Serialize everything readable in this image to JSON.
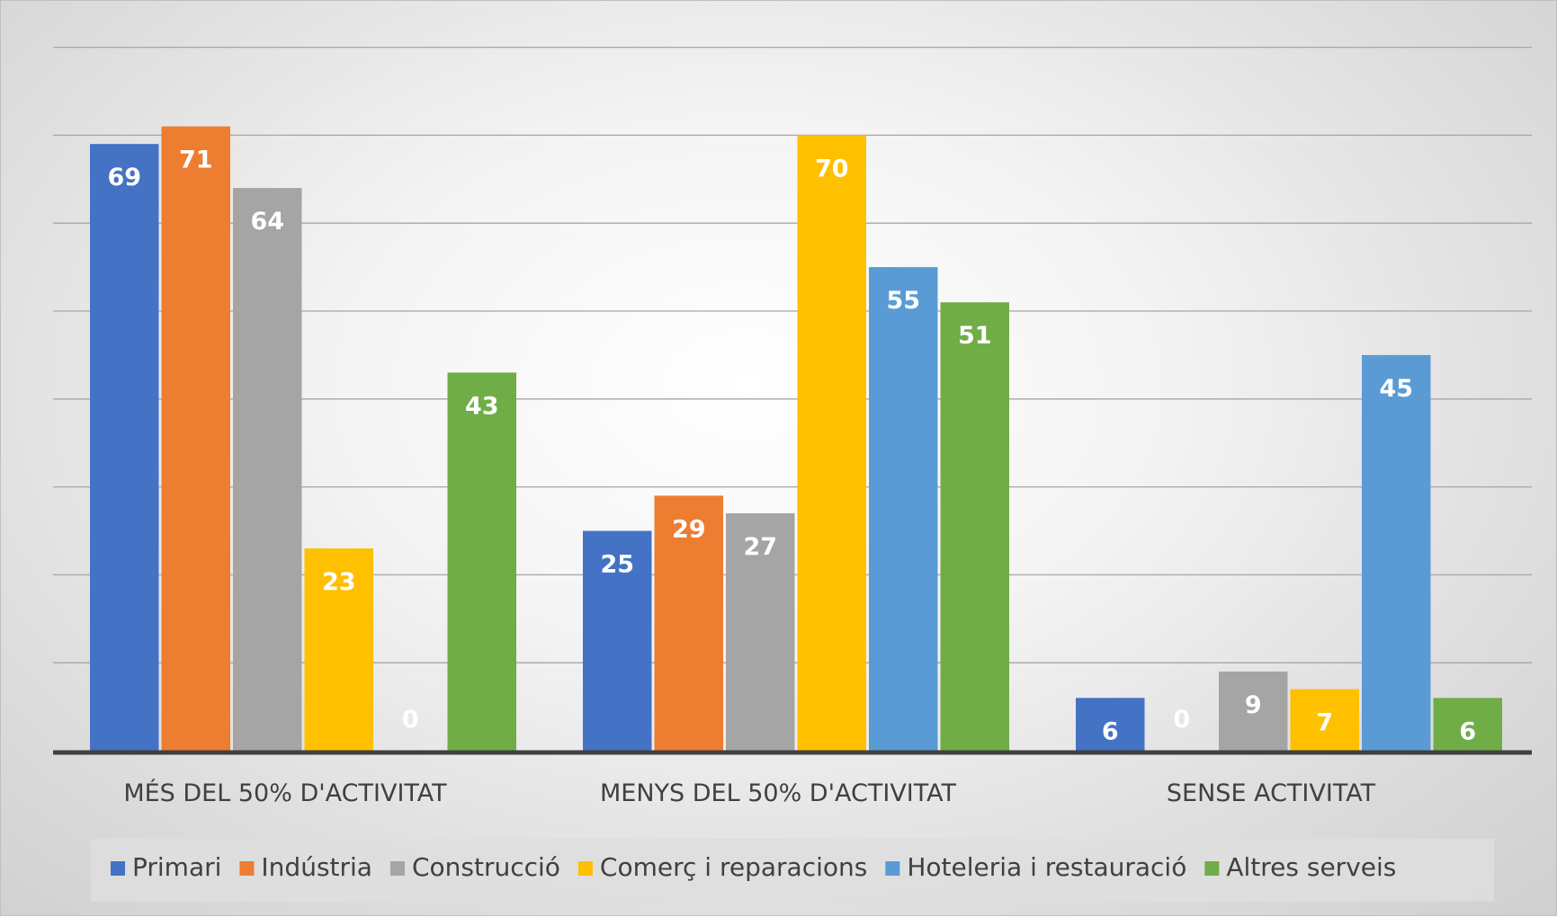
{
  "chart_data": {
    "type": "bar",
    "categories": [
      "MÉS DEL 50% D'ACTIVITAT",
      "MENYS DEL 50% D'ACTIVITAT",
      "SENSE ACTIVITAT"
    ],
    "series": [
      {
        "name": "Primari",
        "color": "#4472C4",
        "values": [
          69,
          25,
          6
        ]
      },
      {
        "name": "Indústria",
        "color": "#ED7D31",
        "values": [
          71,
          29,
          0
        ]
      },
      {
        "name": "Construcció",
        "color": "#A5A5A5",
        "values": [
          64,
          27,
          9
        ]
      },
      {
        "name": "Comerç i reparacions",
        "color": "#FFC000",
        "values": [
          23,
          70,
          7
        ]
      },
      {
        "name": "Hoteleria i restauració",
        "color": "#5B9BD5",
        "values": [
          0,
          55,
          45
        ]
      },
      {
        "name": "Altres serveis",
        "color": "#70AD47",
        "values": [
          43,
          51,
          6
        ]
      }
    ],
    "title": "",
    "xlabel": "",
    "ylabel": "",
    "ylim": [
      0,
      80
    ],
    "grid": true,
    "legend_position": "bottom",
    "data_labels": true
  }
}
